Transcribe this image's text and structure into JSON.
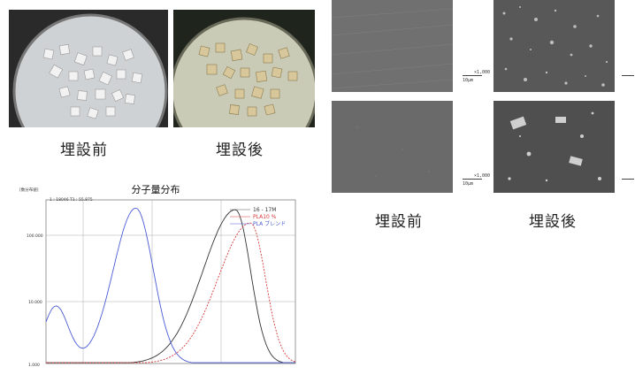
{
  "photos": {
    "before_caption": "埋設前",
    "after_caption": "埋設後"
  },
  "sem": {
    "before_caption": "埋設前",
    "after_caption": "埋設後",
    "mag_label": "×1,000",
    "scale_label": "10μm"
  },
  "chart_data": {
    "type": "line",
    "title": "分子量分布",
    "header_left": "[数分布値]",
    "header_stats": "1 : 18046   T1 : 55.875",
    "x_scale": "log",
    "y_scale": "log",
    "y_tick_labels": [
      "100.000",
      "10.000",
      "1.000"
    ],
    "grid": true,
    "legend_position": "top-right",
    "series": [
      {
        "name": "16 - 17M",
        "color": "#333333",
        "peak_position": 0.76,
        "peak_height": 0.94
      },
      {
        "name": "PLA10 %",
        "color": "#d63a3a",
        "peak_position": 0.82,
        "peak_height": 0.86
      },
      {
        "name": "PLA ブレンド",
        "color": "#4a5bd4",
        "peak_position": 0.36,
        "peak_height": 0.95
      }
    ]
  }
}
